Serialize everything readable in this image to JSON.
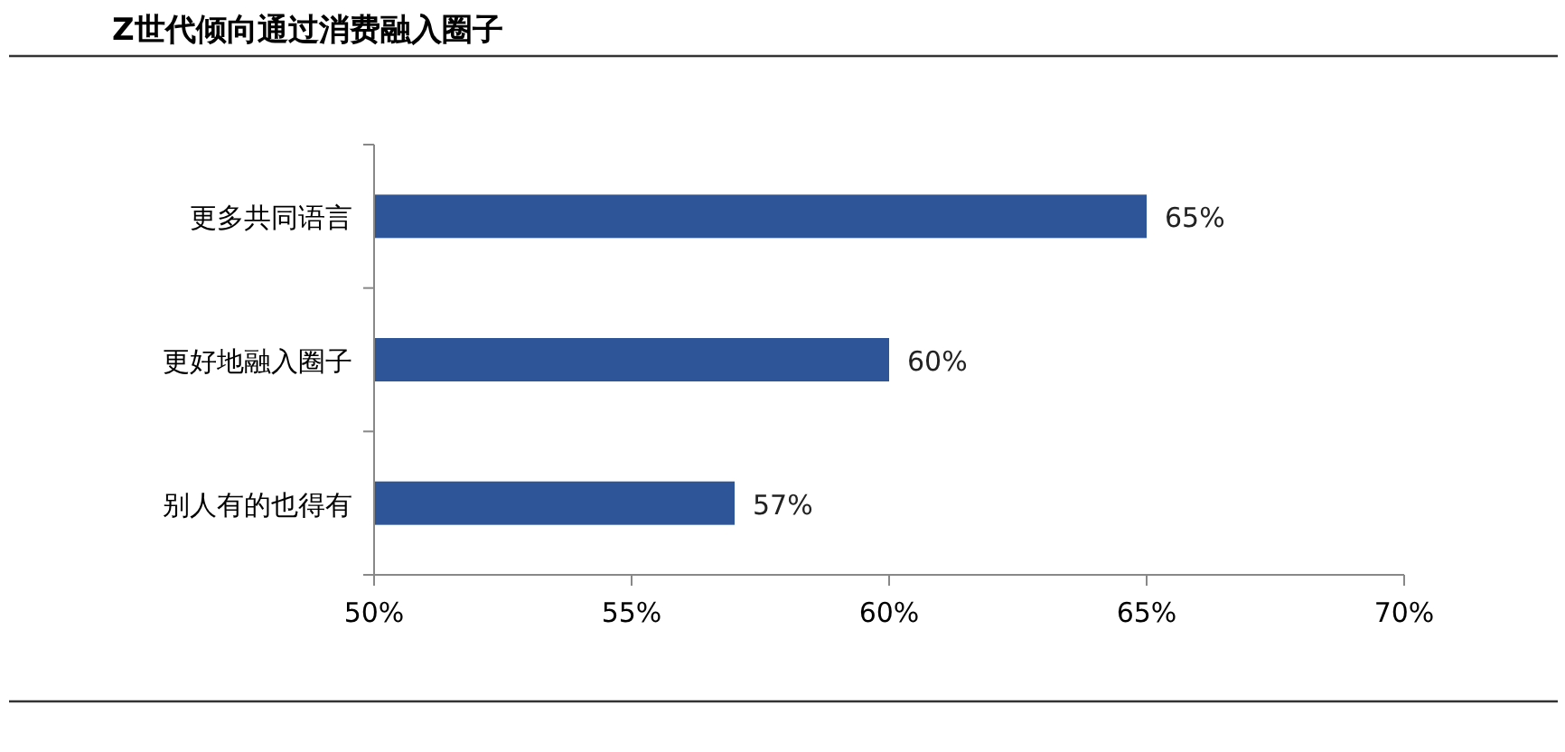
{
  "chart_data": {
    "type": "bar",
    "title": "Z世代倾向通过消费融入圈子",
    "orientation": "horizontal",
    "categories": [
      "更多共同语言",
      "更好地融入圈子",
      "别人有的也得有"
    ],
    "values": [
      65,
      60,
      57
    ],
    "color": "#2e5597",
    "value_labels": [
      "65%",
      "60%",
      "57%"
    ],
    "xlim": [
      50,
      70
    ],
    "xticks": [
      {
        "value": 50,
        "label": "50%"
      },
      {
        "value": 55,
        "label": "55%"
      },
      {
        "value": 60,
        "label": "60%"
      },
      {
        "value": 65,
        "label": "65%"
      },
      {
        "value": 70,
        "label": "70%"
      }
    ],
    "grid": false,
    "legend": false
  }
}
